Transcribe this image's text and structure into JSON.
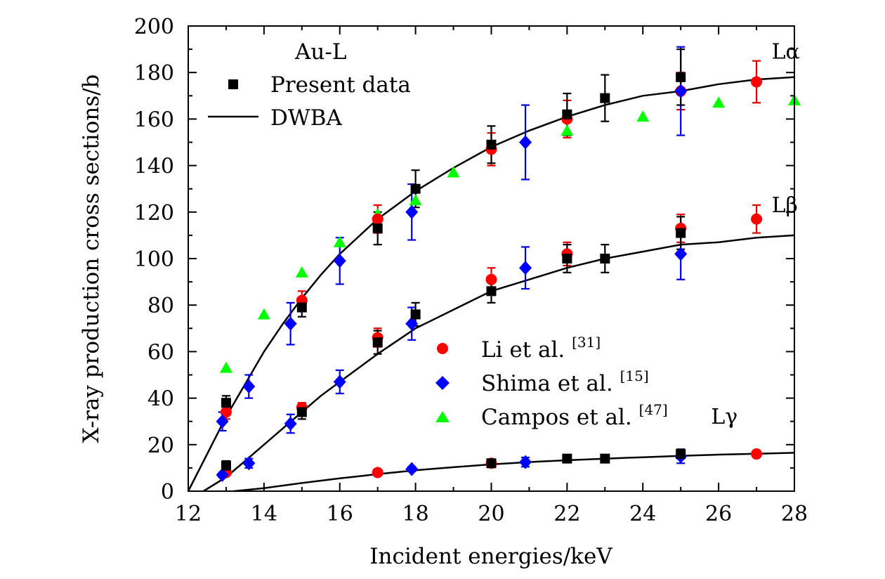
{
  "chart_data": {
    "type": "scatter",
    "xlabel": "Incident energies/keV",
    "ylabel": "X-ray production cross sections/b",
    "xlim": [
      12,
      28
    ],
    "ylim": [
      0,
      200
    ],
    "x_ticks": [
      "12",
      "14",
      "16",
      "18",
      "20",
      "22",
      "24",
      "26",
      "28"
    ],
    "y_ticks": [
      "0",
      "20",
      "40",
      "60",
      "80",
      "100",
      "120",
      "140",
      "160",
      "180",
      "200"
    ],
    "grid": false,
    "legend_top": {
      "title": "Au-L",
      "entries": [
        {
          "label": "Present data",
          "marker": "square",
          "color": "#000000"
        },
        {
          "label": "DWBA",
          "marker": "line",
          "color": "#000000"
        }
      ]
    },
    "legend_bottom": {
      "entries": [
        {
          "label": "Li et al.",
          "ref": "[31]",
          "marker": "circle",
          "color": "#ff0000"
        },
        {
          "label": "Shima et al.",
          "ref": "[15]",
          "marker": "diamond",
          "color": "#0000ff"
        },
        {
          "label": "Campos et al.",
          "ref": "[47]",
          "marker": "triangle",
          "color": "#00ff00"
        }
      ]
    },
    "line_labels": {
      "La": {
        "text": "Lα",
        "x": 27.4,
        "y": 186
      },
      "Lb": {
        "text": "Lβ",
        "x": 27.4,
        "y": 120
      },
      "Lg": {
        "text": "Lγ",
        "x": 25.8,
        "y": 29
      }
    },
    "series": [
      {
        "name": "Present data",
        "group": "Lα",
        "marker": "square",
        "color": "#000000",
        "points": [
          [
            13,
            38,
            3
          ],
          [
            15,
            79,
            4
          ],
          [
            17,
            113,
            7
          ],
          [
            18,
            130,
            8
          ],
          [
            20,
            149,
            8
          ],
          [
            22,
            162,
            9
          ],
          [
            23,
            169,
            10
          ],
          [
            25,
            178,
            12
          ]
        ]
      },
      {
        "name": "Present data",
        "group": "Lβ",
        "marker": "square",
        "color": "#000000",
        "points": [
          [
            13,
            11,
            2
          ],
          [
            15,
            34,
            3
          ],
          [
            17,
            64,
            5
          ],
          [
            18,
            76,
            5
          ],
          [
            20,
            86,
            5
          ],
          [
            22,
            100,
            6
          ],
          [
            23,
            100,
            6
          ],
          [
            25,
            111,
            7
          ]
        ]
      },
      {
        "name": "Present data",
        "group": "Lγ",
        "marker": "square",
        "color": "#000000",
        "points": [
          [
            20,
            12,
            1
          ],
          [
            22,
            14,
            1
          ],
          [
            23,
            14,
            1
          ],
          [
            25,
            16,
            2
          ]
        ]
      },
      {
        "name": "Li et al.",
        "group": "Lα",
        "marker": "circle",
        "color": "#ff0000",
        "points": [
          [
            13,
            34,
            3
          ],
          [
            15,
            82,
            4
          ],
          [
            17,
            117,
            6
          ],
          [
            20,
            147,
            7
          ],
          [
            22,
            160,
            8
          ],
          [
            25,
            172,
            8
          ],
          [
            27,
            176,
            9
          ]
        ]
      },
      {
        "name": "Li et al.",
        "group": "Lβ",
        "marker": "circle",
        "color": "#ff0000",
        "points": [
          [
            13,
            8,
            1
          ],
          [
            15,
            36,
            2
          ],
          [
            17,
            66,
            4
          ],
          [
            20,
            91,
            5
          ],
          [
            22,
            102,
            5
          ],
          [
            25,
            113,
            6
          ],
          [
            27,
            117,
            6
          ]
        ]
      },
      {
        "name": "Li et al.",
        "group": "Lγ",
        "marker": "circle",
        "color": "#ff0000",
        "points": [
          [
            17,
            8,
            1
          ],
          [
            20,
            12,
            1
          ],
          [
            27,
            16,
            1
          ]
        ]
      },
      {
        "name": "Shima et al.",
        "group": "Lα",
        "marker": "diamond",
        "color": "#0000ff",
        "points": [
          [
            12.9,
            30,
            4
          ],
          [
            13.6,
            45,
            5
          ],
          [
            14.7,
            72,
            9
          ],
          [
            16,
            99,
            10
          ],
          [
            17.9,
            120,
            12
          ],
          [
            20.9,
            150,
            16
          ],
          [
            25,
            172,
            19
          ]
        ]
      },
      {
        "name": "Shima et al.",
        "group": "Lβ",
        "marker": "diamond",
        "color": "#0000ff",
        "points": [
          [
            12.9,
            7,
            1
          ],
          [
            13.6,
            12,
            2
          ],
          [
            14.7,
            29,
            4
          ],
          [
            16,
            47,
            5
          ],
          [
            17.9,
            72,
            7
          ],
          [
            20.9,
            96,
            9
          ],
          [
            25,
            102,
            11
          ]
        ]
      },
      {
        "name": "Shima et al.",
        "group": "Lγ",
        "marker": "diamond",
        "color": "#0000ff",
        "points": [
          [
            17.9,
            9.5,
            1
          ],
          [
            20.9,
            12.5,
            2
          ],
          [
            25,
            15,
            3
          ]
        ]
      },
      {
        "name": "Campos et al.",
        "group": "Lα",
        "marker": "triangle",
        "color": "#00ff00",
        "points": [
          [
            13,
            53
          ],
          [
            14,
            76
          ],
          [
            15,
            94
          ],
          [
            16,
            107
          ],
          [
            17,
            119
          ],
          [
            18,
            125
          ],
          [
            19,
            137
          ],
          [
            22,
            155
          ],
          [
            24,
            161
          ],
          [
            26,
            167
          ],
          [
            28,
            168
          ]
        ]
      },
      {
        "name": "DWBA",
        "group": "Lα",
        "marker": "line",
        "color": "#000000",
        "points": [
          [
            12,
            0
          ],
          [
            12.5,
            16
          ],
          [
            13,
            32
          ],
          [
            13.5,
            46
          ],
          [
            14,
            60
          ],
          [
            14.5,
            72
          ],
          [
            15,
            83
          ],
          [
            15.5,
            93
          ],
          [
            16,
            102
          ],
          [
            17,
            117
          ],
          [
            18,
            129
          ],
          [
            19,
            139
          ],
          [
            20,
            148
          ],
          [
            21,
            155
          ],
          [
            22,
            161
          ],
          [
            23,
            166
          ],
          [
            24,
            170
          ],
          [
            25,
            172
          ],
          [
            26,
            175
          ],
          [
            27,
            177
          ],
          [
            28,
            178
          ]
        ]
      },
      {
        "name": "DWBA",
        "group": "Lβ",
        "marker": "line",
        "color": "#000000",
        "points": [
          [
            12.4,
            0
          ],
          [
            13,
            6
          ],
          [
            13.5,
            13
          ],
          [
            14,
            20
          ],
          [
            14.5,
            27
          ],
          [
            15,
            34
          ],
          [
            15.5,
            41
          ],
          [
            16,
            47
          ],
          [
            17,
            59
          ],
          [
            18,
            70
          ],
          [
            19,
            78
          ],
          [
            20,
            86
          ],
          [
            21,
            91
          ],
          [
            22,
            96
          ],
          [
            23,
            100
          ],
          [
            24,
            103
          ],
          [
            25,
            106
          ],
          [
            26,
            107
          ],
          [
            27,
            109
          ],
          [
            28,
            110
          ]
        ]
      },
      {
        "name": "DWBA",
        "group": "Lγ",
        "marker": "line",
        "color": "#000000",
        "points": [
          [
            13.2,
            0
          ],
          [
            14,
            1.3
          ],
          [
            15,
            3.5
          ],
          [
            16,
            5.5
          ],
          [
            17,
            7.3
          ],
          [
            18,
            9
          ],
          [
            19,
            10.3
          ],
          [
            20,
            11.5
          ],
          [
            21,
            12.5
          ],
          [
            22,
            13.3
          ],
          [
            23,
            14
          ],
          [
            24,
            14.6
          ],
          [
            25,
            15.2
          ],
          [
            26,
            15.7
          ],
          [
            27,
            16.1
          ],
          [
            28,
            16.5
          ]
        ]
      }
    ]
  }
}
